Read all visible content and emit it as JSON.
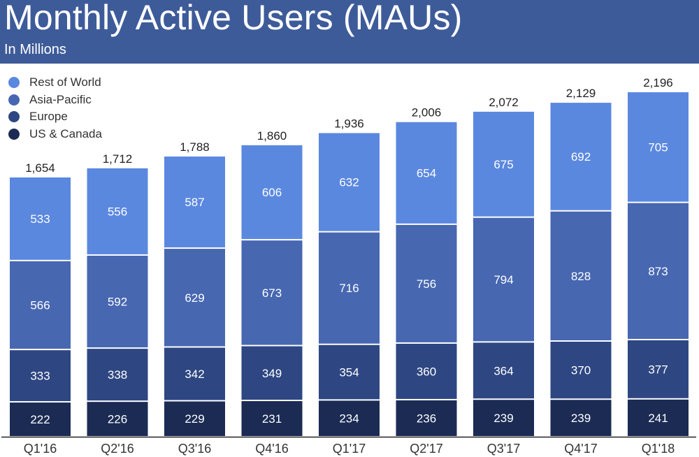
{
  "header": {
    "title": "Monthly Active Users (MAUs)",
    "subtitle": "In Millions",
    "background_color": "#3e5b99"
  },
  "chart_data": {
    "type": "bar",
    "stacked": true,
    "title": "Monthly Active Users (MAUs)",
    "subtitle": "In Millions",
    "xlabel": "",
    "ylabel": "",
    "grid": false,
    "legend_position": "top-left",
    "categories": [
      "Q1'16",
      "Q2'16",
      "Q3'16",
      "Q4'16",
      "Q1'17",
      "Q2'17",
      "Q3'17",
      "Q4'17",
      "Q1'18"
    ],
    "series": [
      {
        "name": "US & Canada",
        "color": "#1b2b54",
        "values": [
          222,
          226,
          229,
          231,
          234,
          236,
          239,
          239,
          241
        ]
      },
      {
        "name": "Europe",
        "color": "#2e4782",
        "values": [
          333,
          338,
          342,
          349,
          354,
          360,
          364,
          370,
          377
        ]
      },
      {
        "name": "Asia-Pacific",
        "color": "#4767b1",
        "values": [
          566,
          592,
          629,
          673,
          716,
          756,
          794,
          828,
          873
        ]
      },
      {
        "name": "Rest of World",
        "color": "#5b88df",
        "values": [
          533,
          556,
          587,
          606,
          632,
          654,
          675,
          692,
          705
        ]
      }
    ],
    "totals": [
      "1,654",
      "1,712",
      "1,788",
      "1,860",
      "1,936",
      "2,006",
      "2,072",
      "2,129",
      "2,196"
    ],
    "total_values": [
      1654,
      1712,
      1788,
      1860,
      1936,
      2006,
      2072,
      2129,
      2196
    ],
    "legend_order": [
      "Rest of World",
      "Asia-Pacific",
      "Europe",
      "US & Canada"
    ],
    "ylim": [
      0,
      2196
    ]
  }
}
